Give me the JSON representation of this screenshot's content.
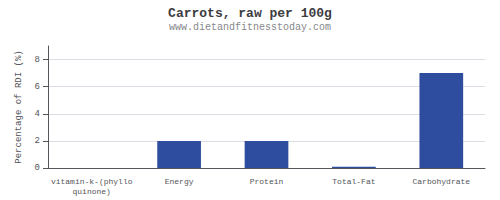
{
  "chart_data": {
    "type": "bar",
    "title": "Carrots, raw per 100g",
    "subtitle": "www.dietandfitnesstoday.com",
    "categories": [
      "vitamin-k-(phylloquinone)",
      "Energy",
      "Protein",
      "Total-Fat",
      "Carbohydrate"
    ],
    "values": [
      0.0,
      2.0,
      2.0,
      0.1,
      7.0
    ],
    "color": "#2e4d9e",
    "ylabel": "Percentage of RDI (%)",
    "ylim": [
      0,
      9
    ],
    "yticks": [
      0,
      2,
      4,
      6,
      8
    ],
    "grid": true
  }
}
